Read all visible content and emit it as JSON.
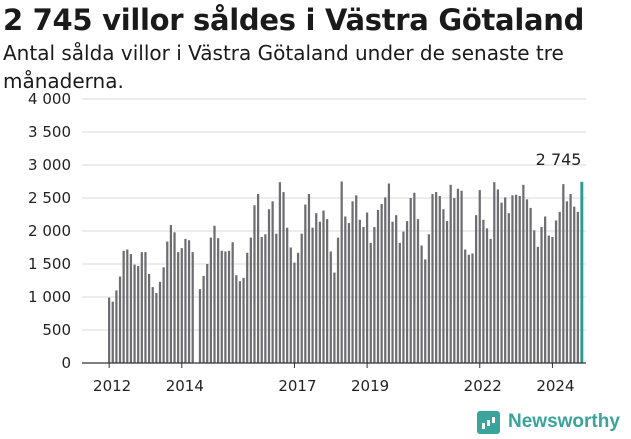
{
  "header": {
    "title": "2 745 villor såldes i Västra Götaland",
    "subtitle": "Antal sålda villor i Västra Götaland under de senaste tre månaderna."
  },
  "brand": {
    "name": "Newsworthy",
    "icon": "newsworthy-logo-icon"
  },
  "colors": {
    "bar": "#6e6d72",
    "highlight": "#2a9d90",
    "text": "#1a1a1a",
    "brand": "#3aa39c"
  },
  "chart_data": {
    "type": "bar",
    "title": "2 745 villor såldes i Västra Götaland",
    "subtitle": "Antal sålda villor i Västra Götaland under de senaste tre månaderna.",
    "xlabel": "",
    "ylabel": "",
    "ylim": [
      0,
      4000
    ],
    "yticks": [
      0,
      500,
      1000,
      1500,
      2000,
      2500,
      3000,
      3500,
      4000
    ],
    "ytick_labels": [
      "0",
      "500",
      "1 000",
      "1 500",
      "2 000",
      "2 500",
      "3 000",
      "3 500",
      "4 000"
    ],
    "xtick_labels": [
      "2012",
      "2014",
      "2017",
      "2019",
      "2022",
      "2024"
    ],
    "xtick_index": [
      0,
      20,
      51,
      71,
      102,
      122
    ],
    "grid": "horizontal",
    "highlight_label": "2 745",
    "highlight_index": 130,
    "values": [
      990,
      930,
      1100,
      1310,
      1700,
      1720,
      1650,
      1490,
      1470,
      1680,
      1680,
      1350,
      1150,
      1060,
      1230,
      1450,
      1840,
      2090,
      1980,
      1680,
      1740,
      1880,
      1860,
      1680,
      0,
      1120,
      1320,
      1500,
      1900,
      2080,
      1890,
      1700,
      1690,
      1700,
      1830,
      1330,
      1240,
      1290,
      1670,
      1900,
      2390,
      2560,
      1910,
      1950,
      2330,
      2450,
      1960,
      2740,
      2590,
      2050,
      1750,
      1520,
      1670,
      1960,
      2400,
      2560,
      2050,
      2270,
      2140,
      2310,
      2180,
      1690,
      1370,
      1900,
      2750,
      2220,
      2120,
      2450,
      2540,
      2170,
      2060,
      2280,
      1820,
      2060,
      2320,
      2410,
      2510,
      2720,
      2140,
      2240,
      1820,
      1990,
      2150,
      2500,
      2580,
      2180,
      1780,
      1570,
      1950,
      2560,
      2590,
      2530,
      2330,
      2150,
      2700,
      2500,
      2640,
      2610,
      1720,
      1640,
      1660,
      2240,
      2620,
      2170,
      2040,
      1880,
      2740,
      2630,
      2430,
      2510,
      2270,
      2540,
      2550,
      2530,
      2700,
      2480,
      2350,
      2010,
      1760,
      2060,
      2220,
      1930,
      1910,
      2160,
      2290,
      2710,
      2450,
      2560,
      2370,
      2290,
      2745
    ]
  }
}
